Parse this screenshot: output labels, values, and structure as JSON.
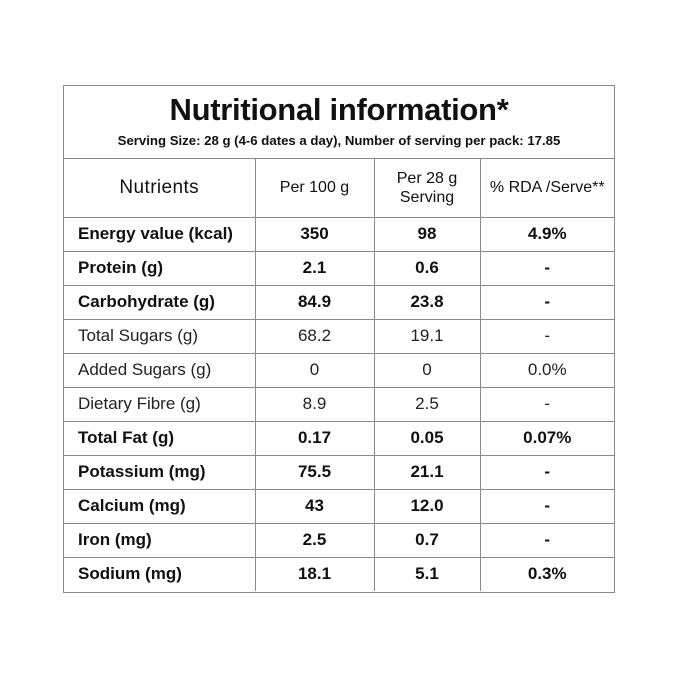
{
  "title": "Nutritional information*",
  "serving_info": "Serving Size: 28 g (4-6 dates a day), Number of serving per pack: 17.85",
  "columns": {
    "nutrients": "Nutrients",
    "per_100g": "Per 100 g",
    "per_serving_line1": "Per 28 g",
    "per_serving_line2": "Serving",
    "rda": "% RDA /Serve**"
  },
  "rows": [
    {
      "name": "Energy value (kcal)",
      "per_100g": "350",
      "per_serving": "98",
      "rda": "4.9%",
      "bold": true
    },
    {
      "name": "Protein (g)",
      "per_100g": "2.1",
      "per_serving": "0.6",
      "rda": "-",
      "bold": true
    },
    {
      "name": "Carbohydrate (g)",
      "per_100g": "84.9",
      "per_serving": "23.8",
      "rda": "-",
      "bold": true
    },
    {
      "name": "Total Sugars (g)",
      "per_100g": "68.2",
      "per_serving": "19.1",
      "rda": "-",
      "bold": false
    },
    {
      "name": "Added Sugars (g)",
      "per_100g": "0",
      "per_serving": "0",
      "rda": "0.0%",
      "bold": false
    },
    {
      "name": "Dietary Fibre (g)",
      "per_100g": "8.9",
      "per_serving": "2.5",
      "rda": "-",
      "bold": false
    },
    {
      "name": "Total Fat (g)",
      "per_100g": "0.17",
      "per_serving": "0.05",
      "rda": "0.07%",
      "bold": true
    },
    {
      "name": "Potassium (mg)",
      "per_100g": "75.5",
      "per_serving": "21.1",
      "rda": "-",
      "bold": true
    },
    {
      "name": "Calcium (mg)",
      "per_100g": "43",
      "per_serving": "12.0",
      "rda": "-",
      "bold": true
    },
    {
      "name": "Iron (mg)",
      "per_100g": "2.5",
      "per_serving": "0.7",
      "rda": "-",
      "bold": true
    },
    {
      "name": "Sodium (mg)",
      "per_100g": "18.1",
      "per_serving": "5.1",
      "rda": "0.3%",
      "bold": true
    }
  ]
}
